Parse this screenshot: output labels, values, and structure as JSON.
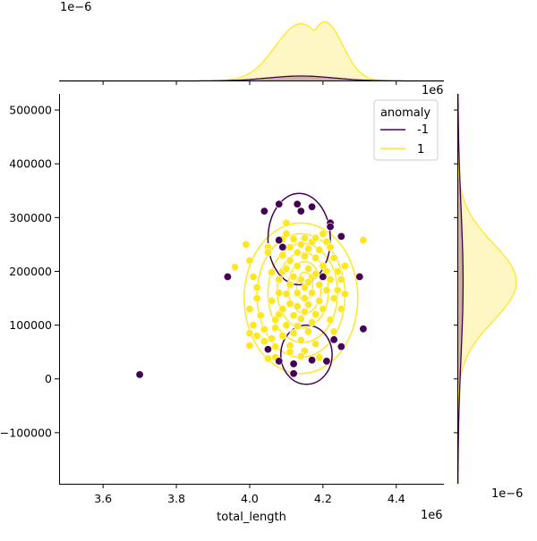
{
  "chart_data": {
    "type": "scatter",
    "subtype": "jointplot-kde",
    "title": "",
    "xlabel": "total_length",
    "ylabel": "",
    "x_offset_label": "1e6",
    "y_offset_label": "1e6",
    "top_marginal_offset_label": "1e−6",
    "right_marginal_offset_label": "1e−6",
    "xlim": [
      3.48,
      4.53
    ],
    "ylim": [
      -195000,
      530000
    ],
    "x_ticks": [
      3.6,
      3.8,
      4.0,
      4.2,
      4.4
    ],
    "x_tick_labels": [
      "3.6",
      "3.8",
      "4.0",
      "4.2",
      "4.4"
    ],
    "y_ticks": [
      -100000,
      0,
      100000,
      200000,
      300000,
      400000,
      500000
    ],
    "y_tick_labels": [
      "−100000",
      "0",
      "100000",
      "200000",
      "300000",
      "400000",
      "500000"
    ],
    "grid": false,
    "legend": {
      "title": "anomaly",
      "placement": "top-right",
      "entries": [
        {
          "label": "-1",
          "color": "#440154"
        },
        {
          "label": "1",
          "color": "#fde725"
        }
      ]
    },
    "colors": {
      "anomaly": "#440154",
      "normal": "#fde725",
      "edge": "#ffffff"
    },
    "series": [
      {
        "name": "-1",
        "color": "#440154",
        "points": [
          [
            3.7,
            8000
          ],
          [
            3.94,
            190000
          ],
          [
            4.04,
            312000
          ],
          [
            4.08,
            325000
          ],
          [
            4.09,
            245000
          ],
          [
            4.08,
            258000
          ],
          [
            4.13,
            325000
          ],
          [
            4.14,
            312000
          ],
          [
            4.17,
            320000
          ],
          [
            4.22,
            290000
          ],
          [
            4.22,
            283000
          ],
          [
            4.25,
            265000
          ],
          [
            4.3,
            190000
          ],
          [
            4.31,
            93000
          ],
          [
            4.05,
            55000
          ],
          [
            4.08,
            33000
          ],
          [
            4.12,
            28000
          ],
          [
            4.12,
            10000
          ],
          [
            4.17,
            35000
          ],
          [
            4.21,
            33000
          ],
          [
            4.23,
            73000
          ],
          [
            4.25,
            60000
          ],
          [
            4.2,
            190000
          ]
        ],
        "kde_levels": [
          {
            "cx": 4.135,
            "cy": 260000,
            "rx": 0.085,
            "ry": 85000,
            "rot": 0
          },
          {
            "cx": 4.155,
            "cy": 45000,
            "rx": 0.07,
            "ry": 55000,
            "rot": 0
          }
        ]
      },
      {
        "name": "1",
        "color": "#fde725",
        "points": [
          [
            3.96,
            208000
          ],
          [
            3.99,
            250000
          ],
          [
            4.0,
            220000
          ],
          [
            4.01,
            190000
          ],
          [
            4.02,
            170000
          ],
          [
            4.0,
            130000
          ],
          [
            4.01,
            100000
          ],
          [
            4.0,
            85000
          ],
          [
            4.0,
            62000
          ],
          [
            4.02,
            80000
          ],
          [
            4.02,
            150000
          ],
          [
            4.03,
            118000
          ],
          [
            4.04,
            70000
          ],
          [
            4.05,
            38000
          ],
          [
            4.05,
            245000
          ],
          [
            4.05,
            235000
          ],
          [
            4.06,
            198000
          ],
          [
            4.06,
            145000
          ],
          [
            4.07,
            110000
          ],
          [
            4.07,
            95000
          ],
          [
            4.07,
            60000
          ],
          [
            4.07,
            40000
          ],
          [
            4.08,
            185000
          ],
          [
            4.08,
            160000
          ],
          [
            4.08,
            120000
          ],
          [
            4.09,
            260000
          ],
          [
            4.09,
            230000
          ],
          [
            4.09,
            200000
          ],
          [
            4.09,
            130000
          ],
          [
            4.09,
            80000
          ],
          [
            4.1,
            270000
          ],
          [
            4.1,
            205000
          ],
          [
            4.1,
            158000
          ],
          [
            4.1,
            100000
          ],
          [
            4.11,
            245000
          ],
          [
            4.11,
            220000
          ],
          [
            4.11,
            175000
          ],
          [
            4.11,
            140000
          ],
          [
            4.11,
            62000
          ],
          [
            4.12,
            260000
          ],
          [
            4.12,
            190000
          ],
          [
            4.12,
            118000
          ],
          [
            4.12,
            85000
          ],
          [
            4.13,
            235000
          ],
          [
            4.13,
            210000
          ],
          [
            4.13,
            160000
          ],
          [
            4.13,
            135000
          ],
          [
            4.13,
            98000
          ],
          [
            4.14,
            250000
          ],
          [
            4.14,
            185000
          ],
          [
            4.14,
            112000
          ],
          [
            4.14,
            72000
          ],
          [
            4.15,
            262000
          ],
          [
            4.15,
            228000
          ],
          [
            4.15,
            170000
          ],
          [
            4.15,
            150000
          ],
          [
            4.15,
            125000
          ],
          [
            4.15,
            52000
          ],
          [
            4.16,
            242000
          ],
          [
            4.16,
            205000
          ],
          [
            4.16,
            138000
          ],
          [
            4.16,
            88000
          ],
          [
            4.17,
            255000
          ],
          [
            4.17,
            190000
          ],
          [
            4.17,
            160000
          ],
          [
            4.17,
            105000
          ],
          [
            4.18,
            262000
          ],
          [
            4.18,
            225000
          ],
          [
            4.18,
            195000
          ],
          [
            4.18,
            120000
          ],
          [
            4.18,
            65000
          ],
          [
            4.19,
            240000
          ],
          [
            4.19,
            175000
          ],
          [
            4.19,
            145000
          ],
          [
            4.19,
            40000
          ],
          [
            4.2,
            270000
          ],
          [
            4.2,
            210000
          ],
          [
            4.2,
            130000
          ],
          [
            4.21,
            255000
          ],
          [
            4.21,
            200000
          ],
          [
            4.21,
            165000
          ],
          [
            4.22,
            245000
          ],
          [
            4.22,
            185000
          ],
          [
            4.22,
            110000
          ],
          [
            4.23,
            225000
          ],
          [
            4.23,
            150000
          ],
          [
            4.23,
            88000
          ],
          [
            4.24,
            200000
          ],
          [
            4.24,
            165000
          ],
          [
            4.25,
            185000
          ],
          [
            4.25,
            130000
          ],
          [
            4.26,
            210000
          ],
          [
            4.26,
            158000
          ],
          [
            4.31,
            258000
          ],
          [
            4.04,
            92000
          ],
          [
            4.06,
            75000
          ],
          [
            4.11,
            50000
          ],
          [
            4.14,
            42000
          ],
          [
            4.16,
            180000
          ],
          [
            4.1,
            290000
          ]
        ],
        "kde_levels": [
          {
            "cx": 4.14,
            "cy": 150000,
            "rx": 0.155,
            "ry": 140000,
            "rot": 0
          },
          {
            "cx": 4.14,
            "cy": 155000,
            "rx": 0.12,
            "ry": 115000,
            "rot": 0
          },
          {
            "cx": 4.145,
            "cy": 160000,
            "rx": 0.095,
            "ry": 92000,
            "rot": 0
          },
          {
            "cx": 4.145,
            "cy": 165000,
            "rx": 0.07,
            "ry": 70000,
            "rot": 0
          },
          {
            "cx": 4.15,
            "cy": 170000,
            "rx": 0.045,
            "ry": 48000,
            "rot": 0
          },
          {
            "cx": 4.15,
            "cy": 172000,
            "rx": 0.022,
            "ry": 26000,
            "rot": 0
          }
        ]
      }
    ],
    "marginal_x": {
      "ylim_max": 1.2,
      "series": [
        {
          "name": "-1",
          "color": "#440154",
          "fill": "#c8a8a0",
          "center": 4.14,
          "sd": 0.09,
          "peak": 0.08
        },
        {
          "name": "1",
          "color": "#fde725",
          "fill": "#fef6bd",
          "center": 4.14,
          "sd": 0.07,
          "peak": 0.93,
          "peak2_offset": 0.065,
          "peak2": 0.96
        }
      ]
    },
    "marginal_y": {
      "xlim_max": 1.2,
      "series": [
        {
          "name": "-1",
          "color": "#440154",
          "fill": "#c8a8a0",
          "center": 180000,
          "sd": 140000,
          "peak": 0.09
        },
        {
          "name": "1",
          "color": "#fde725",
          "fill": "#fef6bd",
          "center": 180000,
          "sd": 72000,
          "peak": 1.0
        }
      ]
    }
  }
}
